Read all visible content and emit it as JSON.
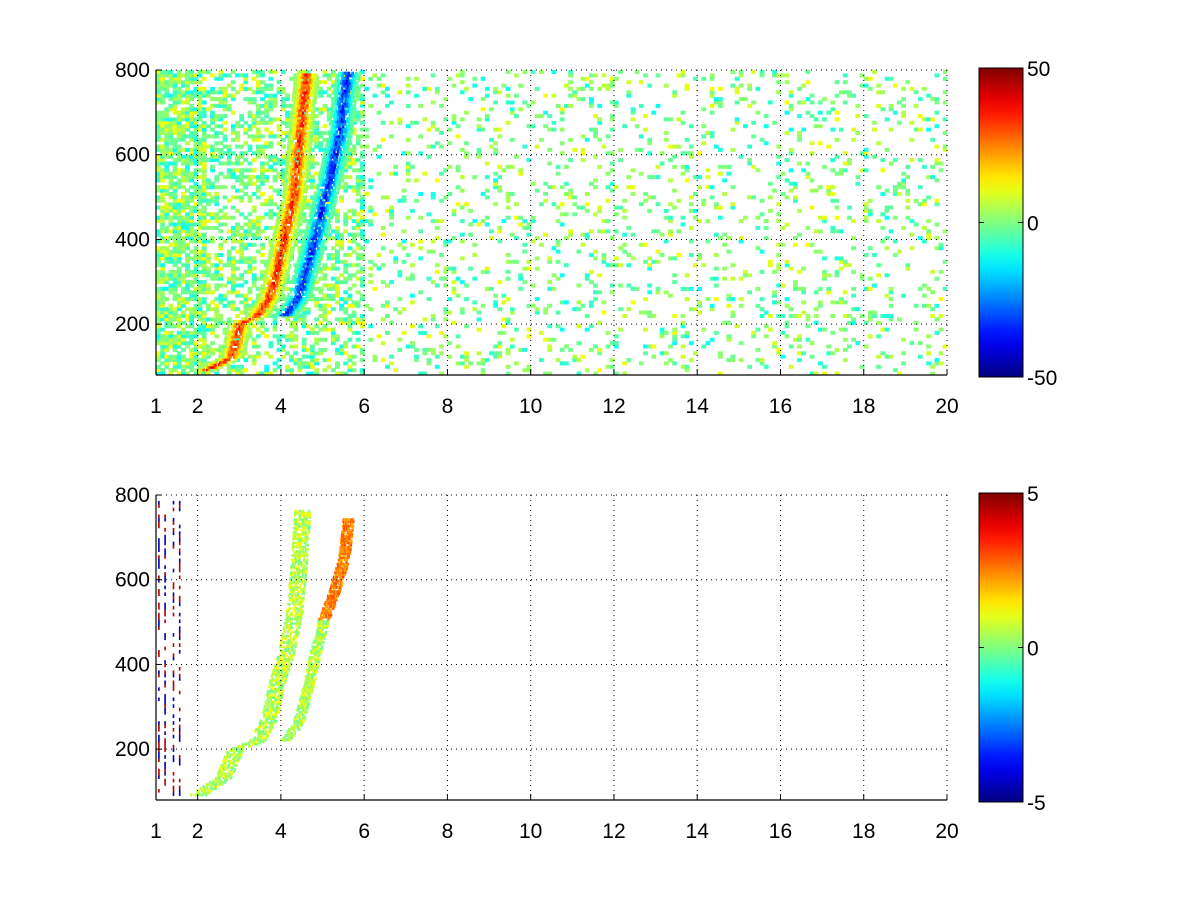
{
  "figure": {
    "background": "#ffffff"
  },
  "chart_data": [
    {
      "type": "heatmap",
      "title": "",
      "xlabel": "",
      "ylabel": "",
      "x_ticks": [
        1,
        2,
        4,
        6,
        8,
        10,
        12,
        14,
        16,
        18,
        20
      ],
      "x_tick_labels": [
        "1",
        "2",
        "4",
        "6",
        "8",
        "10",
        "12",
        "14",
        "16",
        "18",
        "20"
      ],
      "y_ticks": [
        200,
        400,
        600,
        800
      ],
      "y_tick_labels": [
        "200",
        "400",
        "600",
        "800"
      ],
      "xlim": [
        1,
        20
      ],
      "ylim": [
        80,
        800
      ],
      "grid": true,
      "colormap": "jet",
      "colorbar": {
        "min": -50,
        "max": 50,
        "ticks": [
          -50,
          0,
          50
        ],
        "tick_labels": [
          "-50",
          "0",
          "50"
        ],
        "placement": "right"
      },
      "features": {
        "positive_ridge": [
          [
            2.2,
            90
          ],
          [
            2.8,
            120
          ],
          [
            3.0,
            200
          ],
          [
            3.4,
            215
          ],
          [
            3.7,
            260
          ],
          [
            3.9,
            330
          ],
          [
            4.1,
            420
          ],
          [
            4.3,
            500
          ],
          [
            4.4,
            600
          ],
          [
            4.5,
            700
          ],
          [
            4.6,
            790
          ]
        ],
        "negative_ridge": [
          [
            4.1,
            220
          ],
          [
            4.4,
            260
          ],
          [
            4.6,
            330
          ],
          [
            4.8,
            400
          ],
          [
            5.0,
            480
          ],
          [
            5.2,
            560
          ],
          [
            5.4,
            650
          ],
          [
            5.5,
            740
          ],
          [
            5.6,
            790
          ]
        ],
        "ridge_peak_value": 40,
        "background_noise_amplitude": 8
      }
    },
    {
      "type": "heatmap",
      "title": "",
      "xlabel": "",
      "ylabel": "",
      "x_ticks": [
        1,
        2,
        4,
        6,
        8,
        10,
        12,
        14,
        16,
        18,
        20
      ],
      "x_tick_labels": [
        "1",
        "2",
        "4",
        "6",
        "8",
        "10",
        "12",
        "14",
        "16",
        "18",
        "20"
      ],
      "y_ticks": [
        200,
        400,
        600,
        800
      ],
      "y_tick_labels": [
        "200",
        "400",
        "600",
        "800"
      ],
      "xlim": [
        1,
        20
      ],
      "ylim": [
        80,
        800
      ],
      "grid": true,
      "colormap": "jet",
      "colorbar": {
        "min": -5,
        "max": 5,
        "ticks": [
          -5,
          0,
          5
        ],
        "tick_labels": [
          "-5",
          "0",
          "5"
        ],
        "placement": "right"
      },
      "features": {
        "ridge_1": [
          [
            2.0,
            90
          ],
          [
            2.6,
            130
          ],
          [
            2.9,
            200
          ],
          [
            3.4,
            215
          ],
          [
            3.7,
            270
          ],
          [
            3.9,
            360
          ],
          [
            4.1,
            420
          ],
          [
            4.3,
            520
          ],
          [
            4.4,
            620
          ],
          [
            4.5,
            760
          ]
        ],
        "ridge_2": [
          [
            4.1,
            220
          ],
          [
            4.4,
            260
          ],
          [
            4.6,
            330
          ],
          [
            4.8,
            420
          ],
          [
            5.0,
            500
          ],
          [
            5.3,
            580
          ],
          [
            5.5,
            650
          ],
          [
            5.6,
            740
          ]
        ],
        "typical_value": 0.5,
        "upper_right_value": 2.5
      }
    }
  ]
}
